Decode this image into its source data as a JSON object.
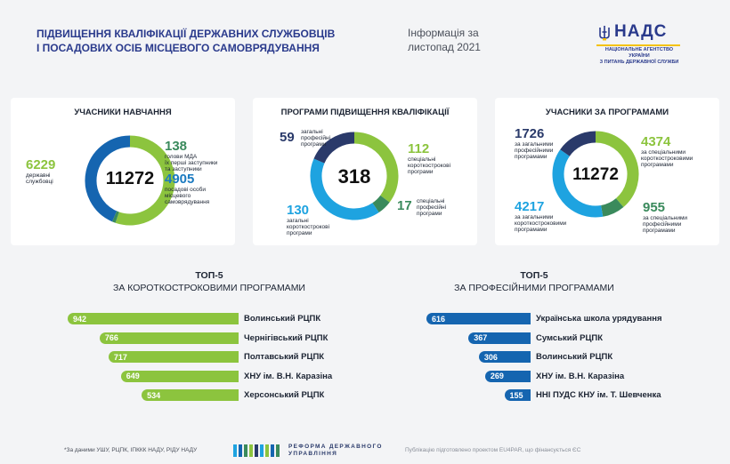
{
  "header": {
    "title_line1": "ПІДВИЩЕННЯ КВАЛІФІКАЦІЇ ДЕРЖАВНИХ СЛУЖБОВЦІВ",
    "title_line2": "І ПОСАДОВИХ ОСІБ МІСЦЕВОГО САМОВРЯДУВАННЯ",
    "info_line1": "Інформація за",
    "info_line2": "листопад 2021",
    "logo_brand": "НАДС",
    "logo_sub1": "НАЦІОНАЛЬНЕ АГЕНТСТВО УКРАЇНИ",
    "logo_sub2": "З ПИТАНЬ ДЕРЖАВНОЇ СЛУЖБИ"
  },
  "colors": {
    "green": "#8cc43e",
    "dark_green": "#3a8a5c",
    "navy": "#2a3a6a",
    "blue": "#1565b0",
    "light_blue": "#1ea3e0",
    "brand": "#2a3a8c"
  },
  "chart_data": [
    {
      "type": "pie",
      "title": "УЧАСНИКИ НАВЧАННЯ",
      "total": "11272",
      "slices": [
        {
          "value": 6229,
          "label": "6229",
          "desc1": "державні",
          "desc2": "службовці",
          "desc3": "",
          "color": "#8cc43e"
        },
        {
          "value": 138,
          "label": "138",
          "desc1": "голови МДА",
          "desc2": "їх перші заступники",
          "desc3": "та заступники",
          "color": "#3a8a5c"
        },
        {
          "value": 4905,
          "label": "4905",
          "desc1": "посадові особи",
          "desc2": "місцевого",
          "desc3": "самоврядування",
          "color": "#1565b0"
        }
      ]
    },
    {
      "type": "pie",
      "title": "ПРОГРАМИ ПІДВИЩЕННЯ КВАЛІФІКАЦІЇ",
      "total": "318",
      "slices": [
        {
          "value": 112,
          "label": "112",
          "desc1": "спеціальні",
          "desc2": "короткострокові",
          "desc3": "програми",
          "color": "#8cc43e"
        },
        {
          "value": 17,
          "label": "17",
          "desc1": "спеціальні",
          "desc2": "професійні",
          "desc3": "програми",
          "color": "#3a8a5c"
        },
        {
          "value": 130,
          "label": "130",
          "desc1": "загальні",
          "desc2": "короткострокові",
          "desc3": "програми",
          "color": "#1ea3e0"
        },
        {
          "value": 59,
          "label": "59",
          "desc1": "загальні",
          "desc2": "професійні",
          "desc3": "програми",
          "color": "#2a3a6a"
        }
      ]
    },
    {
      "type": "pie",
      "title": "УЧАСНИКИ ЗА ПРОГРАМАМИ",
      "total": "11272",
      "slices": [
        {
          "value": 4374,
          "label": "4374",
          "desc1": "за спеціальними",
          "desc2": "короткостроковими",
          "desc3": "програмами",
          "color": "#8cc43e"
        },
        {
          "value": 955,
          "label": "955",
          "desc1": "за спеціальними",
          "desc2": "професійними",
          "desc3": "програмами",
          "color": "#3a8a5c"
        },
        {
          "value": 4217,
          "label": "4217",
          "desc1": "за загальними",
          "desc2": "короткостроковими",
          "desc3": "програмами",
          "color": "#1ea3e0"
        },
        {
          "value": 1726,
          "label": "1726",
          "desc1": "за загальними",
          "desc2": "професійними",
          "desc3": "програмами",
          "color": "#2a3a6a"
        }
      ]
    },
    {
      "type": "bar",
      "title_line1": "ТОП-5",
      "title_line2": "ЗА КОРОТКОСТРОКОВИМИ ПРОГРАМАМИ",
      "categories": [
        "Волинський РЦПК",
        "Чернігівський РЦПК",
        "Полтавський РЦПК",
        "ХНУ ім. В.Н. Каразіна",
        "Херсонський РЦПК"
      ],
      "values": [
        942,
        766,
        717,
        649,
        534
      ],
      "color": "#8cc43e"
    },
    {
      "type": "bar",
      "title_line1": "ТОП-5",
      "title_line2": "ЗА ПРОФЕСІЙНИМИ ПРОГРАМАМИ",
      "categories": [
        "Українська школа урядування",
        "Сумський РЦПК",
        "Волинський РЦПК",
        "ХНУ ім. В.Н. Каразіна",
        "ННІ ПУДС КНУ ім. Т. Шевченка"
      ],
      "values": [
        616,
        367,
        306,
        269,
        155
      ],
      "color": "#1565b0"
    }
  ],
  "footer": {
    "note": "*За даними УШУ, РЦПК, ІПККК НАДУ, РІДУ НАДУ",
    "reform_line1": "РЕФОРМА ДЕРЖАВНОГО",
    "reform_line2": "УПРАВЛІННЯ",
    "publication": "Публікацію підготовлено проектом EU4PAR, що фінансується ЄС"
  }
}
